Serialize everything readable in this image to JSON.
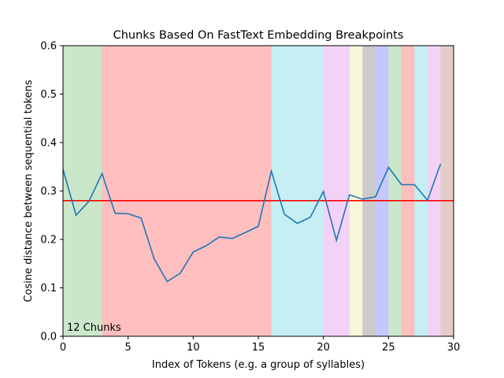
{
  "chart_data": {
    "type": "line",
    "title": "Chunks Based On FastText Embedding Breakpoints",
    "xlabel": "Index of Tokens (e.g. a group of syllables)",
    "ylabel": "Cosine distance between sequential tokens",
    "xlim": [
      0,
      30
    ],
    "ylim": [
      0,
      0.6
    ],
    "xticks": [
      0,
      5,
      10,
      15,
      20,
      25,
      30
    ],
    "yticks": [
      0.0,
      0.1,
      0.2,
      0.3,
      0.4,
      0.5,
      0.6
    ],
    "grid": false,
    "series": [
      {
        "color": "#1f77b4",
        "x": [
          0,
          1,
          2,
          3,
          4,
          5,
          6,
          7,
          8,
          9,
          10,
          11,
          12,
          13,
          14,
          15,
          16,
          17,
          18,
          19,
          20,
          21,
          22,
          23,
          24,
          25,
          26,
          27,
          28,
          29
        ],
        "y": [
          0.345,
          0.25,
          0.279,
          0.336,
          0.254,
          0.253,
          0.244,
          0.16,
          0.113,
          0.13,
          0.174,
          0.187,
          0.205,
          0.202,
          0.214,
          0.227,
          0.341,
          0.252,
          0.233,
          0.246,
          0.299,
          0.198,
          0.292,
          0.283,
          0.288,
          0.349,
          0.313,
          0.313,
          0.281,
          0.356
        ]
      }
    ],
    "threshold": {
      "y": 0.28,
      "color": "#ff0000"
    },
    "chunks": [
      {
        "start": 0,
        "end": 3,
        "color": "#2ca02c"
      },
      {
        "start": 3,
        "end": 16,
        "color": "#ff0000"
      },
      {
        "start": 16,
        "end": 20,
        "color": "#17becf"
      },
      {
        "start": 20,
        "end": 22,
        "color": "#d34be0"
      },
      {
        "start": 22,
        "end": 23,
        "color": "#dfdf5f"
      },
      {
        "start": 23,
        "end": 24,
        "color": "#303030"
      },
      {
        "start": 24,
        "end": 25,
        "color": "#2020ff"
      },
      {
        "start": 25,
        "end": 26,
        "color": "#2ca02c"
      },
      {
        "start": 26,
        "end": 27,
        "color": "#ff0000"
      },
      {
        "start": 27,
        "end": 28,
        "color": "#17becf"
      },
      {
        "start": 28,
        "end": 29,
        "color": "#d34be0"
      },
      {
        "start": 29,
        "end": 30,
        "color": "#8c3a1e"
      }
    ],
    "chunk_alpha": 0.25,
    "annotation": "12 Chunks"
  }
}
